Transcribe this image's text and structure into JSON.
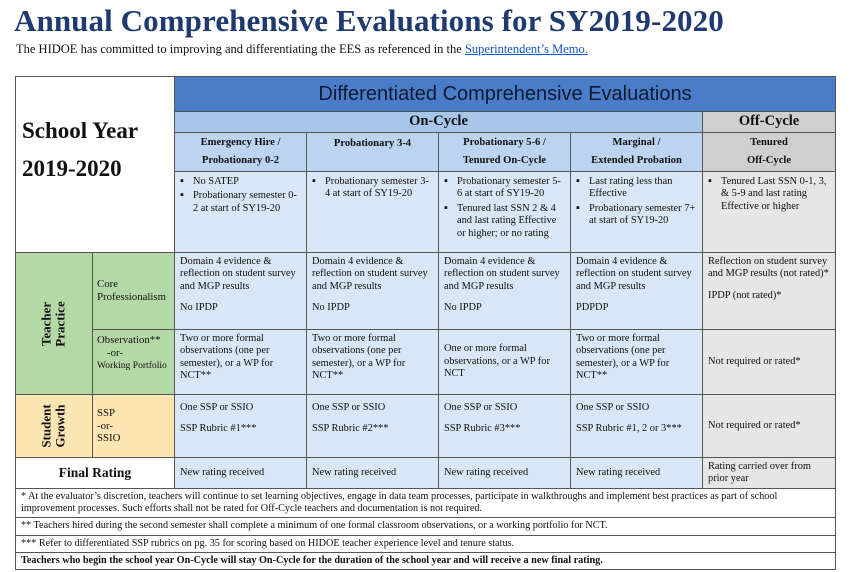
{
  "title": "Annual Comprehensive Evaluations for SY2019-2020",
  "subtitle": {
    "text": "The HIDOE has committed to improving and differentiating the EES as referenced in the ",
    "link": "Superintendent’s Memo."
  },
  "table": {
    "school_year_line1": "School Year",
    "school_year_line2": "2019-2020",
    "header": "Differentiated Comprehensive Evaluations",
    "on_cycle": "On-Cycle",
    "off_cycle": "Off-Cycle",
    "categories": [
      {
        "line1": "Emergency Hire /",
        "line2": "Probationary 0-2"
      },
      {
        "line1": "Probationary 3-4",
        "line2": ""
      },
      {
        "line1": "Probationary 5-6 /",
        "line2": "Tenured On-Cycle"
      },
      {
        "line1": "Marginal /",
        "line2": "Extended Probation"
      },
      {
        "line1": "Tenured",
        "line2": "Off-Cycle"
      }
    ],
    "criteria": [
      [
        "No SATEP",
        "Probationary semester 0-2 at start of SY19-20"
      ],
      [
        "Probationary semester 3-4 at start of SY19-20"
      ],
      [
        "Probationary semester 5-6 at start of SY19-20",
        "Tenured last SSN 2 & 4 and last rating Effective or higher; or no rating"
      ],
      [
        "Last rating less than Effective",
        "Probationary semester 7+ at start of SY19-20"
      ],
      [
        "Tenured Last SSN 0-1, 3, & 5-9 and last rating Effective or higher"
      ]
    ],
    "teacher_practice": {
      "label_line1": "Teacher",
      "label_line2": "Practice",
      "core_label": "Core Professionalism",
      "core": [
        {
          "text": "Domain 4 evidence & reflection on student survey and MGP results",
          "sub": "No IPDP"
        },
        {
          "text": "Domain 4 evidence & reflection on student survey and MGP results",
          "sub": "No IPDP"
        },
        {
          "text": "Domain 4 evidence & reflection on student survey and MGP results",
          "sub": "No IPDP"
        },
        {
          "text": "Domain 4 evidence & reflection on student survey and MGP results",
          "sub": "PDPDP"
        },
        {
          "text": "Reflection on student survey and MGP results (not rated)*",
          "sub": "IPDP (not rated)*"
        }
      ],
      "obs_label_main": "Observation**",
      "obs_label_or": "-or-",
      "obs_label_wp": "Working Portfolio",
      "observation": [
        "Two or more formal observations (one per semester), or a WP for NCT**",
        "Two or more formal observations (one per semester), or a WP for NCT**",
        "One or more formal observations, or a WP for NCT",
        "Two or more formal observations (one per semester), or a WP for NCT**",
        "Not required or rated*"
      ]
    },
    "student_growth": {
      "label_line1": "Student",
      "label_line2": "Growth",
      "ssp_label_1": "SSP",
      "ssp_label_2": "-or-",
      "ssp_label_3": "SSIO",
      "cells": [
        {
          "text": "One SSP or SSIO",
          "sub": "SSP Rubric #1***"
        },
        {
          "text": "One SSP or SSIO",
          "sub": "SSP Rubric #2***"
        },
        {
          "text": "One SSP or SSIO",
          "sub": "SSP Rubric #3***"
        },
        {
          "text": "One SSP or SSIO",
          "sub": "SSP Rubric #1, 2 or 3***"
        }
      ],
      "off_cycle": "Not required or rated*"
    },
    "final_rating": {
      "label": "Final Rating",
      "values": [
        "New rating received",
        "New rating received",
        "New rating received",
        "New rating received",
        "Rating carried over from prior year"
      ]
    },
    "notes": [
      "* At the evaluator’s discretion, teachers will continue to set learning objectives, engage in data team processes, participate in walkthroughs and implement best practices as part of school improvement processes. Such efforts shall not be rated for Off-Cycle teachers and documentation is not required.",
      "** Teachers hired during the second semester shall complete a minimum of one formal classroom observations, or a working portfolio for NCT.",
      "*** Refer to differentiated SSP rubrics on pg. 35 for scoring based on HIDOE teacher experience level and tenure status.",
      "Teachers who begin the school year On-Cycle will stay On-Cycle for the duration of the school year and will receive a new final rating."
    ]
  }
}
